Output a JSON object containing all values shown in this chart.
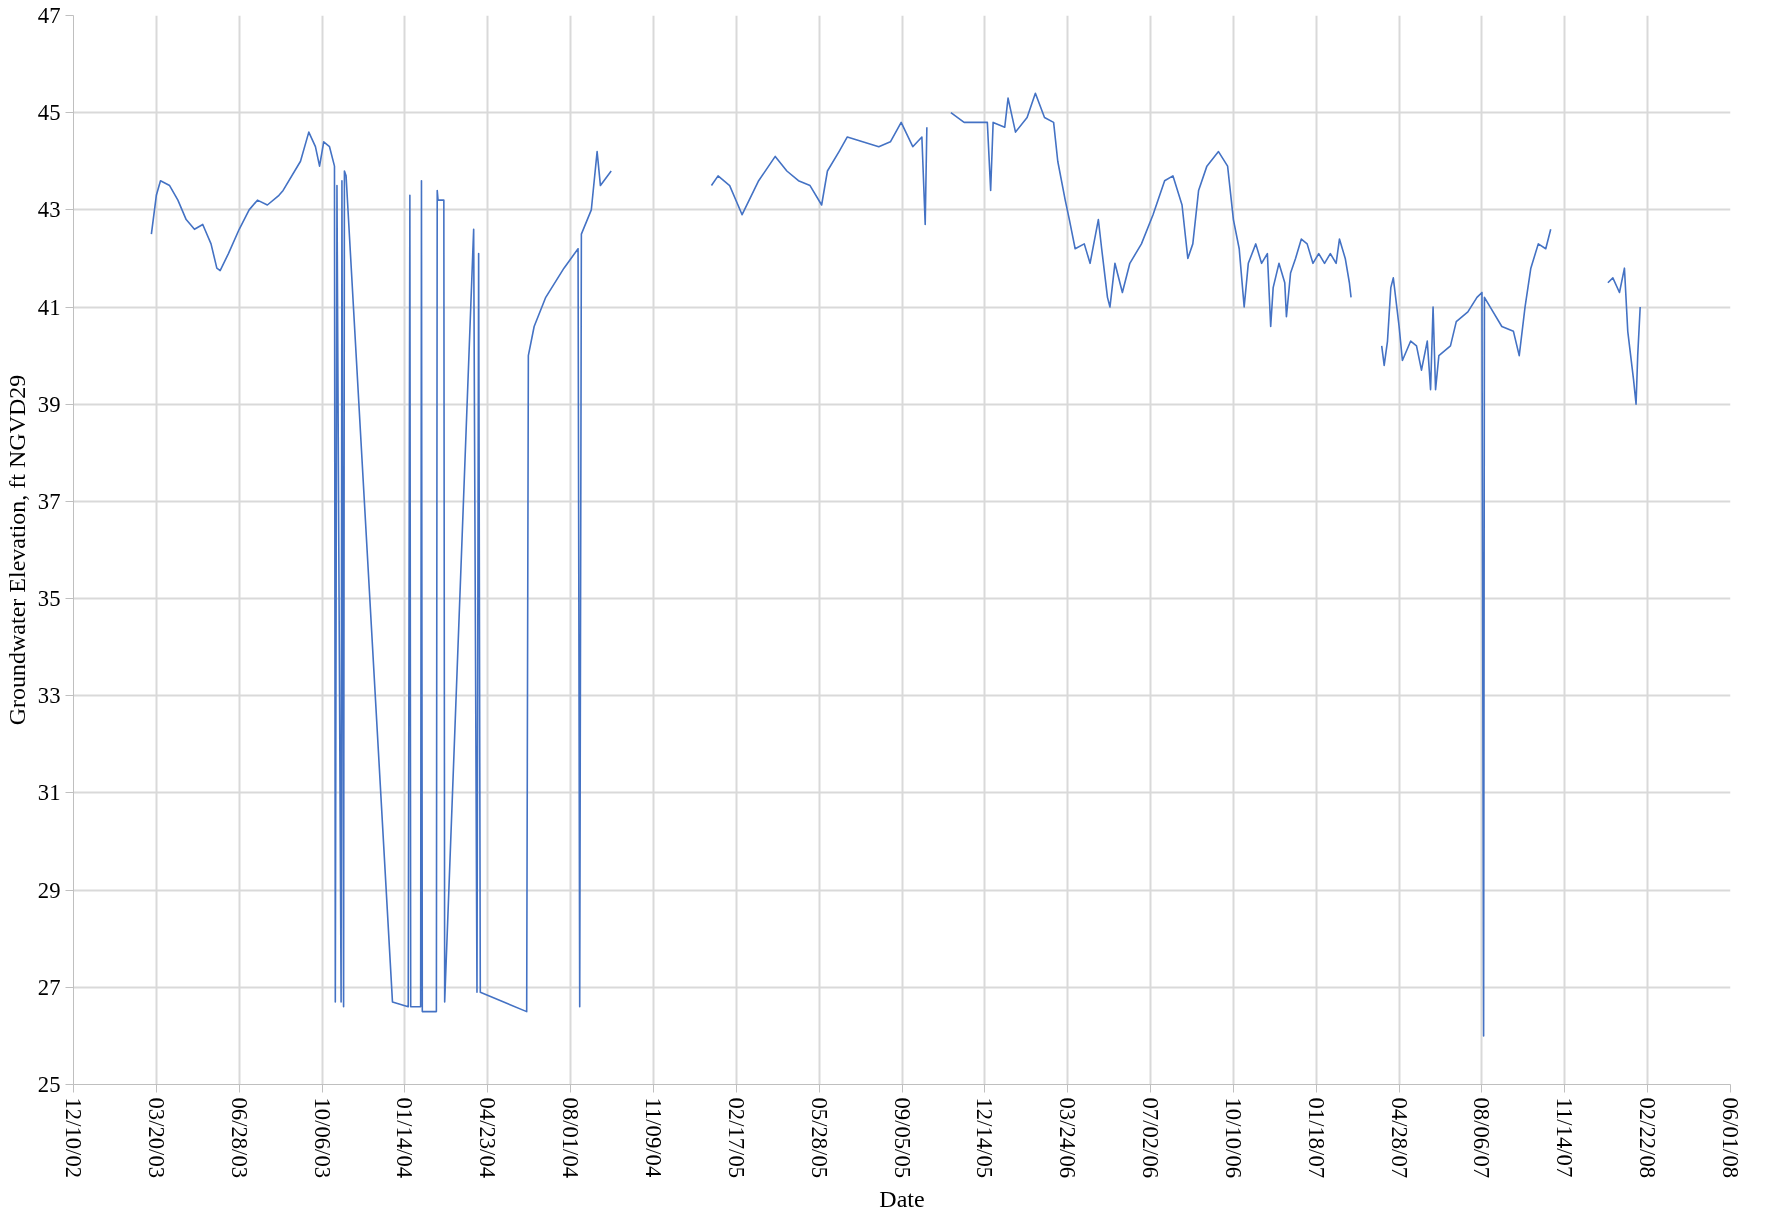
{
  "chart_data": {
    "type": "line",
    "xlabel": "Date",
    "ylabel": "Groundwater Elevation, ft NGVD29",
    "xlim": [
      "2002-12-10",
      "2008-06-01"
    ],
    "xticks": [
      {
        "value": "2002-12-10",
        "label": "12/10/02"
      },
      {
        "value": "2003-03-20",
        "label": "03/20/03"
      },
      {
        "value": "2003-06-28",
        "label": "06/28/03"
      },
      {
        "value": "2003-10-06",
        "label": "10/06/03"
      },
      {
        "value": "2004-01-14",
        "label": "01/14/04"
      },
      {
        "value": "2004-04-23",
        "label": "04/23/04"
      },
      {
        "value": "2004-08-01",
        "label": "08/01/04"
      },
      {
        "value": "2004-11-09",
        "label": "11/09/04"
      },
      {
        "value": "2005-02-17",
        "label": "02/17/05"
      },
      {
        "value": "2005-05-28",
        "label": "05/28/05"
      },
      {
        "value": "2005-09-05",
        "label": "09/05/05"
      },
      {
        "value": "2005-12-14",
        "label": "12/14/05"
      },
      {
        "value": "2006-03-24",
        "label": "03/24/06"
      },
      {
        "value": "2006-07-02",
        "label": "07/02/06"
      },
      {
        "value": "2006-10-10",
        "label": "10/10/06"
      },
      {
        "value": "2007-01-18",
        "label": "01/18/07"
      },
      {
        "value": "2007-04-28",
        "label": "04/28/07"
      },
      {
        "value": "2007-08-06",
        "label": "08/06/07"
      },
      {
        "value": "2007-11-14",
        "label": "11/14/07"
      },
      {
        "value": "2008-02-22",
        "label": "02/22/08"
      },
      {
        "value": "2008-06-01",
        "label": "06/01/08"
      }
    ],
    "ylim": [
      25,
      47
    ],
    "yticks": [
      25,
      27,
      29,
      31,
      33,
      35,
      37,
      39,
      41,
      43,
      45,
      47
    ],
    "grid": true,
    "marker": "none",
    "line_style": "solid",
    "series": [
      {
        "color": "#4472c4",
        "x": [
          "2003-03-14",
          "2003-03-20",
          "2003-03-25",
          "2003-04-05",
          "2003-04-15",
          "2003-04-25",
          "2003-05-05",
          "2003-05-15",
          "2003-05-25",
          "2003-06-01",
          "2003-06-05",
          "2003-06-15",
          "2003-06-28",
          "2003-07-10",
          "2003-07-20",
          "2003-08-01",
          "2003-08-15",
          "2003-08-20",
          "2003-09-10",
          "2003-09-20",
          "2003-09-28",
          "2003-10-03",
          "2003-10-08",
          "2003-10-15",
          "2003-10-21",
          "2003-10-22",
          "2003-10-24",
          "2003-10-29",
          "2003-10-30",
          "2003-11-01",
          "2003-11-02",
          "2003-11-04",
          "2003-12-30",
          "2004-01-18",
          "2004-01-20",
          "2004-01-21",
          "2004-02-02",
          "2004-02-03",
          "2004-02-04",
          "2004-02-21",
          "2004-02-22",
          "2004-02-23",
          "2004-03-01",
          "2004-03-02",
          "2004-04-06",
          "2004-04-10",
          "2004-04-12",
          "2004-04-14",
          "2004-06-09",
          "2004-06-11",
          "2004-06-18",
          "2004-07-02",
          "2004-07-24",
          "2004-08-10",
          "2004-08-12",
          "2004-08-14",
          "2004-08-26",
          "2004-09-02",
          "2004-09-06",
          "2004-09-19",
          "2004-12-01",
          "2005-01-18",
          "2005-01-26",
          "2005-02-09",
          "2005-02-19",
          "2005-02-24",
          "2005-03-16",
          "2005-04-05",
          "2005-04-19",
          "2005-05-03",
          "2005-05-17",
          "2005-05-31",
          "2005-06-07",
          "2005-06-21",
          "2005-07-01",
          "2005-08-08",
          "2005-08-22",
          "2005-09-04",
          "2005-09-18",
          "2005-09-29",
          "2005-10-03",
          "2005-10-05",
          "2005-10-20",
          "2005-11-03",
          "2005-11-19",
          "2005-12-17",
          "2005-12-21",
          "2005-12-24",
          "2006-01-07",
          "2006-01-11",
          "2006-01-20",
          "2006-02-03",
          "2006-02-13",
          "2006-02-24",
          "2006-03-07",
          "2006-03-12",
          "2006-03-21",
          "2006-03-26",
          "2006-04-02",
          "2006-04-13",
          "2006-04-20",
          "2006-04-30",
          "2006-05-04",
          "2006-05-11",
          "2006-05-14",
          "2006-05-20",
          "2006-05-29",
          "2006-06-07",
          "2006-06-21",
          "2006-07-05",
          "2006-07-19",
          "2006-07-29",
          "2006-08-09",
          "2006-08-16",
          "2006-08-22",
          "2006-08-29",
          "2006-09-08",
          "2006-09-22",
          "2006-10-03",
          "2006-10-10",
          "2006-10-17",
          "2006-10-23",
          "2006-10-28",
          "2006-11-06",
          "2006-11-13",
          "2006-11-20",
          "2006-11-24",
          "2006-11-27",
          "2006-12-04",
          "2006-12-11",
          "2006-12-13",
          "2006-12-18",
          "2006-12-24",
          "2006-12-31",
          "2007-01-07",
          "2007-01-14",
          "2007-01-21",
          "2007-01-28",
          "2007-02-04",
          "2007-02-11",
          "2007-02-15",
          "2007-02-22",
          "2007-02-27",
          "2007-03-01",
          "2007-03-20",
          "2007-04-07",
          "2007-04-10",
          "2007-04-14",
          "2007-04-18",
          "2007-04-21",
          "2007-04-28",
          "2007-05-02",
          "2007-05-12",
          "2007-05-19",
          "2007-05-25",
          "2007-06-01",
          "2007-06-05",
          "2007-06-08",
          "2007-06-11",
          "2007-06-15",
          "2007-06-29",
          "2007-07-06",
          "2007-07-20",
          "2007-07-31",
          "2007-08-06",
          "2007-08-08",
          "2007-08-09",
          "2007-08-16",
          "2007-08-30",
          "2007-09-13",
          "2007-09-20",
          "2007-09-27",
          "2007-10-04",
          "2007-10-13",
          "2007-10-22",
          "2007-10-28",
          "2007-12-01",
          "2008-01-05",
          "2008-01-11",
          "2008-01-19",
          "2008-01-25",
          "2008-01-29",
          "2008-02-05",
          "2008-02-08",
          "2008-02-10",
          "2008-02-13"
        ],
        "values": [
          42.5,
          43.3,
          43.6,
          43.5,
          43.2,
          42.8,
          42.6,
          42.7,
          42.3,
          41.8,
          41.75,
          42.1,
          42.6,
          43.0,
          43.2,
          43.1,
          43.3,
          43.4,
          44.0,
          44.6,
          44.3,
          43.9,
          44.4,
          44.3,
          43.9,
          26.7,
          43.5,
          26.7,
          43.6,
          26.6,
          43.8,
          43.7,
          26.7,
          26.6,
          43.3,
          26.6,
          26.6,
          43.6,
          26.5,
          26.5,
          43.4,
          43.2,
          43.2,
          26.7,
          42.6,
          26.9,
          42.1,
          26.9,
          26.5,
          40.0,
          40.6,
          41.2,
          41.8,
          42.2,
          26.6,
          42.5,
          43.0,
          44.2,
          43.5,
          43.8,
          null,
          43.5,
          43.7,
          43.5,
          43.1,
          42.9,
          43.6,
          44.1,
          43.8,
          43.6,
          43.5,
          43.1,
          43.8,
          44.2,
          44.5,
          44.3,
          44.4,
          44.8,
          44.3,
          44.5,
          42.7,
          44.7,
          null,
          45.0,
          44.8,
          44.8,
          43.4,
          44.8,
          44.7,
          45.3,
          44.6,
          44.9,
          45.4,
          44.9,
          44.8,
          44.0,
          43.2,
          42.8,
          42.2,
          42.3,
          41.9,
          42.8,
          42.2,
          41.2,
          41.0,
          41.9,
          41.3,
          41.9,
          42.3,
          42.9,
          43.6,
          43.7,
          43.1,
          42.0,
          42.3,
          43.4,
          43.9,
          44.2,
          43.9,
          42.8,
          42.2,
          41.0,
          41.9,
          42.3,
          41.9,
          42.1,
          40.6,
          41.4,
          41.9,
          41.5,
          40.8,
          41.7,
          42.0,
          42.4,
          42.3,
          41.9,
          42.1,
          41.9,
          42.1,
          41.9,
          42.4,
          42.0,
          41.5,
          41.2,
          null,
          40.2,
          39.8,
          40.3,
          41.4,
          41.6,
          40.6,
          39.9,
          40.3,
          40.2,
          39.7,
          40.3,
          39.3,
          41.0,
          39.3,
          40.0,
          40.2,
          40.7,
          40.9,
          41.2,
          41.3,
          26.0,
          41.2,
          41.0,
          40.6,
          40.5,
          40.0,
          41.0,
          41.8,
          42.3,
          42.2,
          42.6,
          null,
          41.5,
          41.6,
          41.3,
          41.8,
          40.5,
          39.5,
          39.0,
          40.0,
          41.0
        ]
      }
    ]
  }
}
